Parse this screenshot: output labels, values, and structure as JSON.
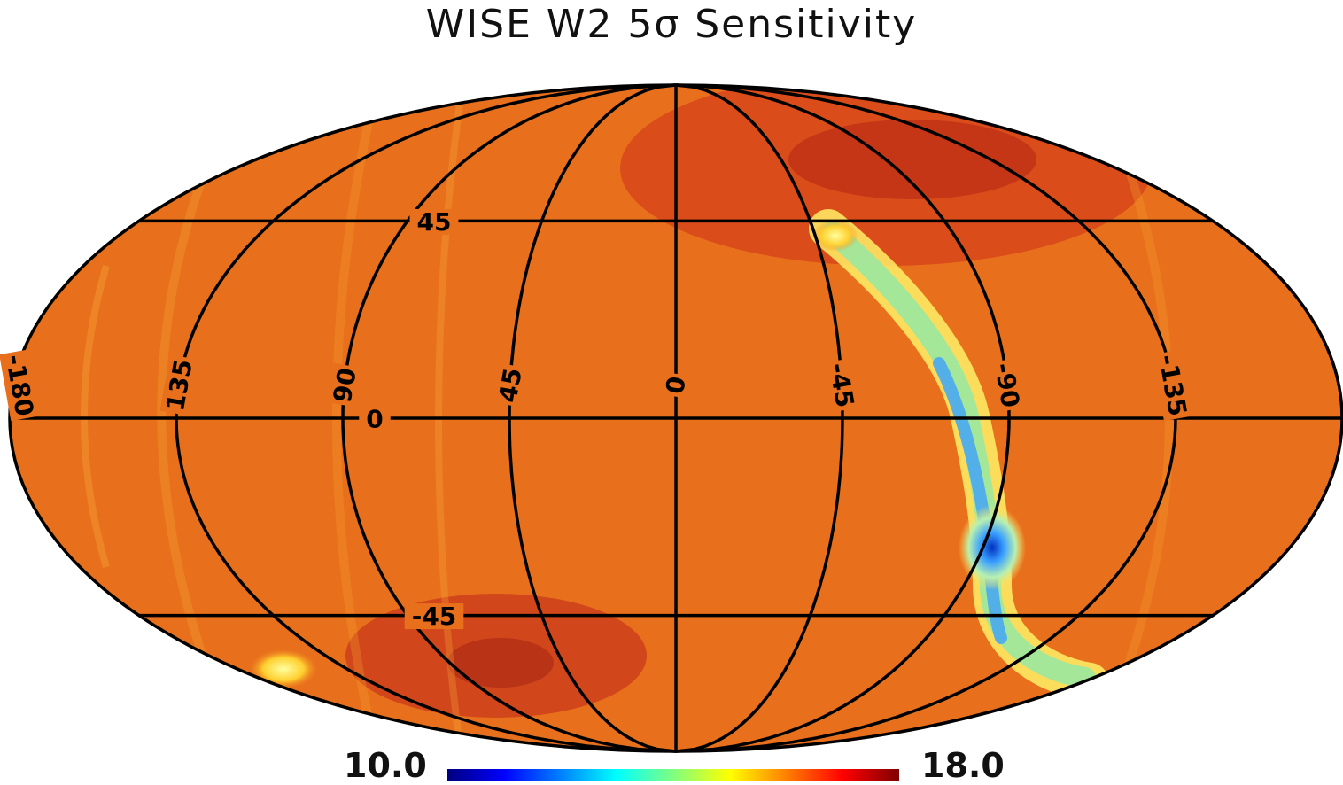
{
  "title": "WISE W2 5σ Sensitivity",
  "map": {
    "projection": "Mollweide",
    "meridian_labels": [
      "-180",
      "135",
      "90",
      "45",
      "0",
      "-45",
      "-90",
      "-135"
    ],
    "meridian_values": [
      180,
      135,
      90,
      45,
      0,
      -45,
      -90,
      -135
    ],
    "parallel_labels": [
      "45",
      "0",
      "-45"
    ],
    "parallel_values": [
      45,
      0,
      -45
    ],
    "background_color": "#e8701c",
    "grid_color": "#000000"
  },
  "colorbar": {
    "min_label": "10.0",
    "max_label": "18.0",
    "min": 10.0,
    "max": 18.0,
    "colormap": [
      "#00007f",
      "#0000ff",
      "#0080ff",
      "#00ffff",
      "#80ff80",
      "#ffff00",
      "#ff8000",
      "#ff0000",
      "#7f0000"
    ]
  }
}
